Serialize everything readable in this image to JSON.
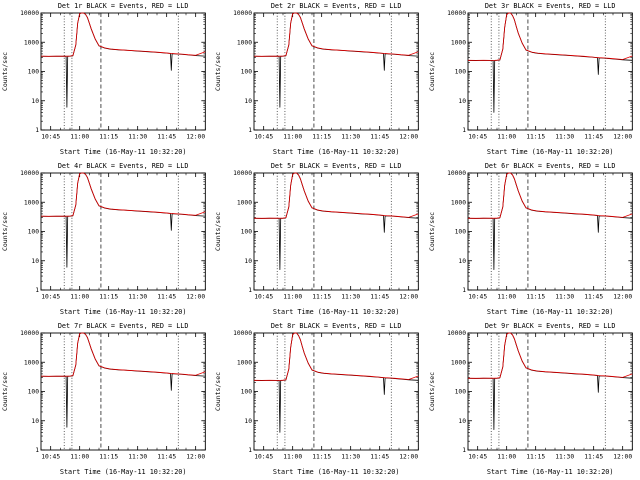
{
  "page": {
    "background": "#ffffff"
  },
  "chart_common": {
    "type": "line",
    "ylabel": "Counts/sec",
    "yscale": "log",
    "ylim": [
      1,
      10000
    ],
    "y_ticks": [
      1,
      10,
      100,
      1000,
      10000
    ],
    "y_tick_labels": [
      "1",
      "10",
      "100",
      "1000",
      "10000"
    ],
    "xlim_minutes": [
      0,
      85
    ],
    "x_tick_minutes": [
      5,
      20,
      35,
      50,
      65,
      80
    ],
    "x_tick_labels": [
      "10:45",
      "11:00",
      "11:15",
      "11:30",
      "11:45",
      "12:00"
    ],
    "x_minor_step_minutes": 5,
    "grid": "off",
    "legend": "in-title",
    "colors": {
      "events": "#000000",
      "lld": "#e00000"
    },
    "vlines": [
      {
        "t": 12,
        "style": "dotted"
      },
      {
        "t": 16,
        "style": "dotted"
      },
      {
        "t": 31,
        "style": "dashed"
      },
      {
        "t": 71,
        "style": "dotted"
      }
    ],
    "x": [
      0,
      4,
      8,
      12,
      13,
      13.4,
      13.8,
      15,
      16.5,
      18,
      19,
      20,
      21,
      22,
      23,
      24,
      25,
      26,
      28,
      30,
      33,
      36,
      40,
      45,
      50,
      55,
      60,
      64,
      66.5,
      67,
      67.4,
      67.8,
      70,
      73,
      76,
      80,
      85
    ]
  },
  "chart_data": [
    {
      "title": "Det 1r BLACK = Events, RED = LLD",
      "xlabel": "Start Time (16-May-11 10:32:20)",
      "series": [
        {
          "name": "Events",
          "color": "#000000",
          "y": [
            330,
            328,
            332,
            330,
            330,
            6,
            330,
            333,
            345,
            800,
            4500,
            9500,
            10000,
            10000,
            9000,
            7000,
            4500,
            2800,
            1300,
            750,
            630,
            580,
            550,
            525,
            500,
            475,
            450,
            430,
            415,
            410,
            110,
            405,
            398,
            385,
            370,
            350,
            335
          ]
        },
        {
          "name": "LLD",
          "color": "#e00000",
          "y": [
            335,
            332,
            336,
            334,
            334,
            333,
            334,
            337,
            350,
            820,
            4600,
            9600,
            10000,
            10000,
            9100,
            7100,
            4600,
            2850,
            1320,
            760,
            640,
            590,
            558,
            532,
            508,
            482,
            458,
            436,
            420,
            416,
            414,
            412,
            404,
            392,
            376,
            358,
            470
          ]
        }
      ]
    },
    {
      "title": "Det 2r BLACK = Events, RED = LLD",
      "xlabel": "Start Time (16-May-11 10:32:20)",
      "series": [
        {
          "name": "Events",
          "color": "#000000",
          "y": [
            330,
            328,
            332,
            330,
            330,
            6,
            330,
            333,
            345,
            800,
            4500,
            9500,
            10000,
            10000,
            9000,
            7000,
            4500,
            2800,
            1300,
            750,
            630,
            580,
            550,
            525,
            500,
            475,
            450,
            430,
            415,
            410,
            110,
            405,
            398,
            385,
            370,
            350,
            335
          ]
        },
        {
          "name": "LLD",
          "color": "#e00000",
          "y": [
            335,
            332,
            336,
            334,
            334,
            333,
            334,
            337,
            350,
            820,
            4600,
            9600,
            10000,
            10000,
            9100,
            7100,
            4600,
            2850,
            1320,
            760,
            640,
            590,
            558,
            532,
            508,
            482,
            458,
            436,
            420,
            416,
            414,
            412,
            404,
            392,
            376,
            358,
            470
          ]
        }
      ]
    },
    {
      "title": "Det 3r BLACK = Events, RED = LLD",
      "xlabel": "Start Time (16-May-11 10:32:20)",
      "series": [
        {
          "name": "Events",
          "color": "#000000",
          "y": [
            238,
            236,
            239,
            238,
            238,
            4,
            238,
            240,
            248,
            576,
            3240,
            8800,
            10000,
            10000,
            8200,
            5800,
            3400,
            2000,
            940,
            540,
            454,
            418,
            396,
            378,
            360,
            342,
            324,
            310,
            299,
            295,
            79,
            292,
            287,
            277,
            266,
            252,
            241
          ]
        },
        {
          "name": "LLD",
          "color": "#e00000",
          "y": [
            241,
            239,
            242,
            240,
            240,
            240,
            240,
            243,
            252,
            590,
            3310,
            8900,
            10000,
            10000,
            8300,
            5900,
            3450,
            2050,
            950,
            547,
            461,
            425,
            402,
            383,
            366,
            347,
            330,
            314,
            302,
            300,
            298,
            297,
            291,
            282,
            271,
            258,
            338
          ]
        }
      ]
    },
    {
      "title": "Det 4r BLACK = Events, RED = LLD",
      "xlabel": "Start Time (16-May-11 10:32:20)",
      "series": [
        {
          "name": "Events",
          "color": "#000000",
          "y": [
            330,
            328,
            332,
            330,
            330,
            6,
            330,
            333,
            345,
            800,
            4500,
            9500,
            10000,
            10000,
            9000,
            7000,
            4500,
            2800,
            1300,
            750,
            630,
            580,
            550,
            525,
            500,
            475,
            450,
            430,
            415,
            410,
            110,
            405,
            398,
            385,
            370,
            350,
            335
          ]
        },
        {
          "name": "LLD",
          "color": "#e00000",
          "y": [
            335,
            332,
            336,
            334,
            334,
            333,
            334,
            337,
            350,
            820,
            4600,
            9600,
            10000,
            10000,
            9100,
            7100,
            4600,
            2850,
            1320,
            760,
            640,
            590,
            558,
            532,
            508,
            482,
            458,
            436,
            420,
            416,
            414,
            412,
            404,
            392,
            376,
            358,
            470
          ]
        }
      ]
    },
    {
      "title": "Det 5r BLACK = Events, RED = LLD",
      "xlabel": "Start Time (16-May-11 10:32:20)",
      "series": [
        {
          "name": "Events",
          "color": "#000000",
          "y": [
            281,
            279,
            282,
            281,
            281,
            5,
            281,
            283,
            293,
            680,
            3800,
            9000,
            10000,
            10000,
            8600,
            6300,
            3900,
            2400,
            1100,
            640,
            536,
            493,
            468,
            446,
            425,
            404,
            383,
            366,
            353,
            349,
            94,
            344,
            338,
            327,
            315,
            298,
            285
          ]
        },
        {
          "name": "LLD",
          "color": "#e00000",
          "y": [
            285,
            282,
            286,
            284,
            284,
            283,
            284,
            286,
            298,
            700,
            3900,
            9100,
            10000,
            10000,
            8700,
            6400,
            4000,
            2450,
            1120,
            646,
            544,
            502,
            474,
            452,
            432,
            410,
            389,
            371,
            357,
            354,
            352,
            350,
            343,
            333,
            320,
            304,
            400
          ]
        }
      ]
    },
    {
      "title": "Det 6r BLACK = Events, RED = LLD",
      "xlabel": "Start Time (16-May-11 10:32:20)",
      "series": [
        {
          "name": "Events",
          "color": "#000000",
          "y": [
            281,
            279,
            282,
            281,
            281,
            5,
            281,
            283,
            293,
            680,
            3800,
            9000,
            10000,
            10000,
            8600,
            6300,
            3900,
            2400,
            1100,
            640,
            536,
            493,
            468,
            446,
            425,
            404,
            383,
            366,
            353,
            349,
            94,
            344,
            338,
            327,
            315,
            298,
            285
          ]
        },
        {
          "name": "LLD",
          "color": "#e00000",
          "y": [
            285,
            282,
            286,
            284,
            284,
            283,
            284,
            286,
            298,
            700,
            3900,
            9100,
            10000,
            10000,
            8700,
            6400,
            4000,
            2450,
            1120,
            646,
            544,
            502,
            474,
            452,
            432,
            410,
            389,
            371,
            357,
            354,
            352,
            350,
            343,
            333,
            320,
            304,
            400
          ]
        }
      ]
    },
    {
      "title": "Det 7r BLACK = Events, RED = LLD",
      "xlabel": "Start Time (16-May-11 10:32:20)",
      "series": [
        {
          "name": "Events",
          "color": "#000000",
          "y": [
            330,
            328,
            332,
            330,
            330,
            6,
            330,
            333,
            345,
            800,
            4500,
            9500,
            10000,
            10000,
            9000,
            7000,
            4500,
            2800,
            1300,
            750,
            630,
            580,
            550,
            525,
            500,
            475,
            450,
            430,
            415,
            410,
            110,
            405,
            398,
            385,
            370,
            350,
            335
          ]
        },
        {
          "name": "LLD",
          "color": "#e00000",
          "y": [
            335,
            332,
            336,
            334,
            334,
            333,
            334,
            337,
            350,
            820,
            4600,
            9600,
            10000,
            10000,
            9100,
            7100,
            4600,
            2850,
            1320,
            760,
            640,
            590,
            558,
            532,
            508,
            482,
            458,
            436,
            420,
            416,
            414,
            412,
            404,
            392,
            376,
            358,
            470
          ]
        }
      ]
    },
    {
      "title": "Det 8r BLACK = Events, RED = LLD",
      "xlabel": "Start Time (16-May-11 10:32:20)",
      "series": [
        {
          "name": "Events",
          "color": "#000000",
          "y": [
            238,
            236,
            239,
            238,
            238,
            4,
            238,
            240,
            248,
            576,
            3240,
            8800,
            10000,
            10000,
            8200,
            5800,
            3400,
            2000,
            940,
            540,
            454,
            418,
            396,
            378,
            360,
            342,
            324,
            310,
            299,
            295,
            79,
            292,
            287,
            277,
            266,
            252,
            241
          ]
        },
        {
          "name": "LLD",
          "color": "#e00000",
          "y": [
            241,
            239,
            242,
            240,
            240,
            240,
            240,
            243,
            252,
            590,
            3310,
            8900,
            10000,
            10000,
            8300,
            5900,
            3450,
            2050,
            950,
            547,
            461,
            425,
            402,
            383,
            366,
            347,
            330,
            314,
            302,
            300,
            298,
            297,
            291,
            282,
            271,
            258,
            338
          ]
        }
      ]
    },
    {
      "title": "Det 9r BLACK = Events, RED = LLD",
      "xlabel": "Start Time (16-May-11 10:32:20)",
      "series": [
        {
          "name": "Events",
          "color": "#000000",
          "y": [
            281,
            279,
            282,
            281,
            281,
            5,
            281,
            283,
            293,
            680,
            3800,
            9000,
            10000,
            10000,
            8600,
            6300,
            3900,
            2400,
            1100,
            640,
            536,
            493,
            468,
            446,
            425,
            404,
            383,
            366,
            353,
            349,
            94,
            344,
            338,
            327,
            315,
            298,
            285
          ]
        },
        {
          "name": "LLD",
          "color": "#e00000",
          "y": [
            285,
            282,
            286,
            284,
            284,
            283,
            284,
            286,
            298,
            700,
            3900,
            9100,
            10000,
            10000,
            8700,
            6400,
            4000,
            2450,
            1120,
            646,
            544,
            502,
            474,
            452,
            432,
            410,
            389,
            371,
            357,
            354,
            352,
            350,
            343,
            333,
            320,
            304,
            400
          ]
        }
      ]
    }
  ]
}
